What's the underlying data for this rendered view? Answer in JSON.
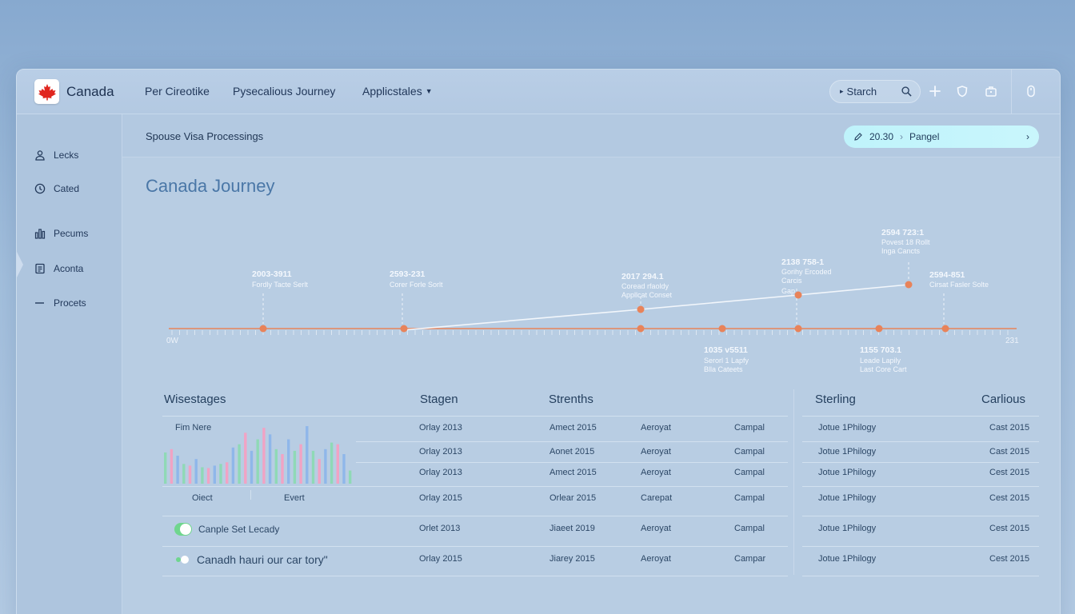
{
  "app": {
    "brand": "Canada"
  },
  "nav": {
    "links": [
      "Per Cireotike",
      "Pysecalious Journey",
      "Applicstales"
    ],
    "search_label": "Starch"
  },
  "sidebar": {
    "items": [
      {
        "label": "Lecks",
        "icon": "user-lock-icon"
      },
      {
        "label": "Cated",
        "icon": "clock-icon"
      },
      {
        "label": "Pecums",
        "icon": "bar-chart-icon"
      },
      {
        "label": "Aconta",
        "icon": "document-icon"
      },
      {
        "label": "Procets",
        "icon": "dash-icon"
      }
    ]
  },
  "subheader": {
    "breadcrumb": "Spouse Visa Processings",
    "pill": {
      "value": "20.30",
      "label": "Pangel"
    }
  },
  "page": {
    "title": "Canada Journey"
  },
  "timeline": {
    "axis_start": "0W",
    "axis_end": "231",
    "above": [
      {
        "date": "2003-3911",
        "desc": [
          "Fordly Tacte Serlt"
        ]
      },
      {
        "date": "2593-231",
        "desc": [
          "Corer Forle Sorlt"
        ]
      },
      {
        "date": "2017 294.1",
        "desc": [
          "Coread rfaoldy",
          "Appllcat Conset"
        ]
      },
      {
        "date": "2138 758-1",
        "desc": [
          "Gorihy Ercoded",
          "Carcis",
          "Gap"
        ]
      },
      {
        "date": "2594 723:1",
        "desc": [
          "Povest 18 Rollt",
          "Inga Cancts"
        ]
      },
      {
        "date": "2594-851",
        "desc": [
          "Cirsat Fasler Solte"
        ]
      }
    ],
    "below": [
      {
        "date": "1035 v5511",
        "desc": [
          "Serorl 1 Lapfy",
          "Blla Cateets"
        ]
      },
      {
        "date": "1155 703.1",
        "desc": [
          "Leade Lapily",
          "Last Core Cart"
        ]
      }
    ]
  },
  "table": {
    "headers": [
      "Wisestages",
      "Stagen",
      "Strenths",
      "Sterling",
      "Carlious"
    ],
    "chart_header": "Fim Nere",
    "chart_footer": [
      "Oiect",
      "Evert"
    ],
    "rows": [
      [
        "Orlay 2013",
        "Amect 2015",
        "Aeroyat",
        "Campal",
        "Jotue 1Philogy",
        "Cast 2015"
      ],
      [
        "Orlay 2013",
        "Aonet 2015",
        "Aeroyat",
        "Campal",
        "Jotue 1Philogy",
        "Cast 2015"
      ],
      [
        "Orlay 2013",
        "Amect 2015",
        "Aeroyat",
        "Campal",
        "Jotue 1Philogy",
        "Cest 2015"
      ],
      [
        "Orlay 2015",
        "Orlear 2015",
        "Carepat",
        "Campal",
        "Jotue 1Philogy",
        "Cest 2015"
      ],
      [
        "Orlet 2013",
        "Jiaeet 2019",
        "Aeroyat",
        "Campal",
        "Jotue 1Philogy",
        "Cest 2015"
      ],
      [
        "Orlay 2015",
        "Jiarey 2015",
        "Aeroyat",
        "Campar",
        "Jotue 1Philogy",
        "Cest 2015"
      ]
    ],
    "toggles": [
      {
        "label": "Canple Set Lecady",
        "on": true
      },
      {
        "label": "Canadh hauri our car tory\"",
        "on": true
      }
    ]
  },
  "mini_chart": {
    "values": [
      38,
      42,
      34,
      24,
      22,
      30,
      20,
      19,
      22,
      24,
      26,
      44,
      48,
      62,
      40,
      54,
      68,
      60,
      42,
      36,
      54,
      40,
      48,
      70,
      40,
      30,
      42,
      50,
      48,
      36,
      16
    ],
    "colors": [
      "#8fd9b6",
      "#f1a3c4",
      "#8fb7ea"
    ]
  },
  "colors": {
    "accent": "#e8835a",
    "line": "#f2f6fb",
    "title": "#4a77a7"
  }
}
